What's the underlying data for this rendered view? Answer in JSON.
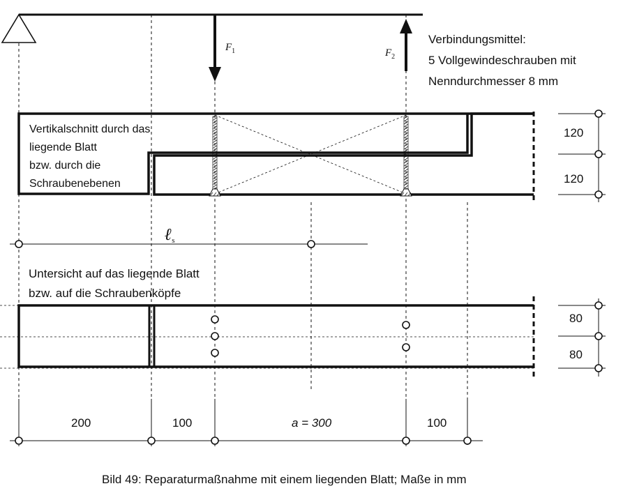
{
  "labels": {
    "force1": "F",
    "force1_sub": "1",
    "force2": "F",
    "force2_sub": "2",
    "connector_title": "Verbindungsmittel:",
    "connector_line2": "5 Vollgewindeschrauben mit",
    "connector_line3": "Nenndurchmesser 8 mm",
    "section_line1": "Vertikalschnitt durch das",
    "section_line2": "liegende Blatt",
    "section_line3": "bzw. durch die",
    "section_line4": "Schraubenebenen",
    "ls_symbol": "ℓ",
    "ls_sub": "s",
    "view_line1": "Untersicht auf das liegende Blatt",
    "view_line2": "bzw. auf die Schraubenköpfe",
    "caption": "Bild 49: Reparaturmaßnahme mit einem liegenden Blatt; Maße in mm"
  },
  "dimensions": {
    "height_upper": "120",
    "height_lower": "120",
    "width_upper": "80",
    "width_lower": "80",
    "span_200": "200",
    "span_100_left": "100",
    "span_a": "a = 300",
    "span_100_right": "100"
  }
}
